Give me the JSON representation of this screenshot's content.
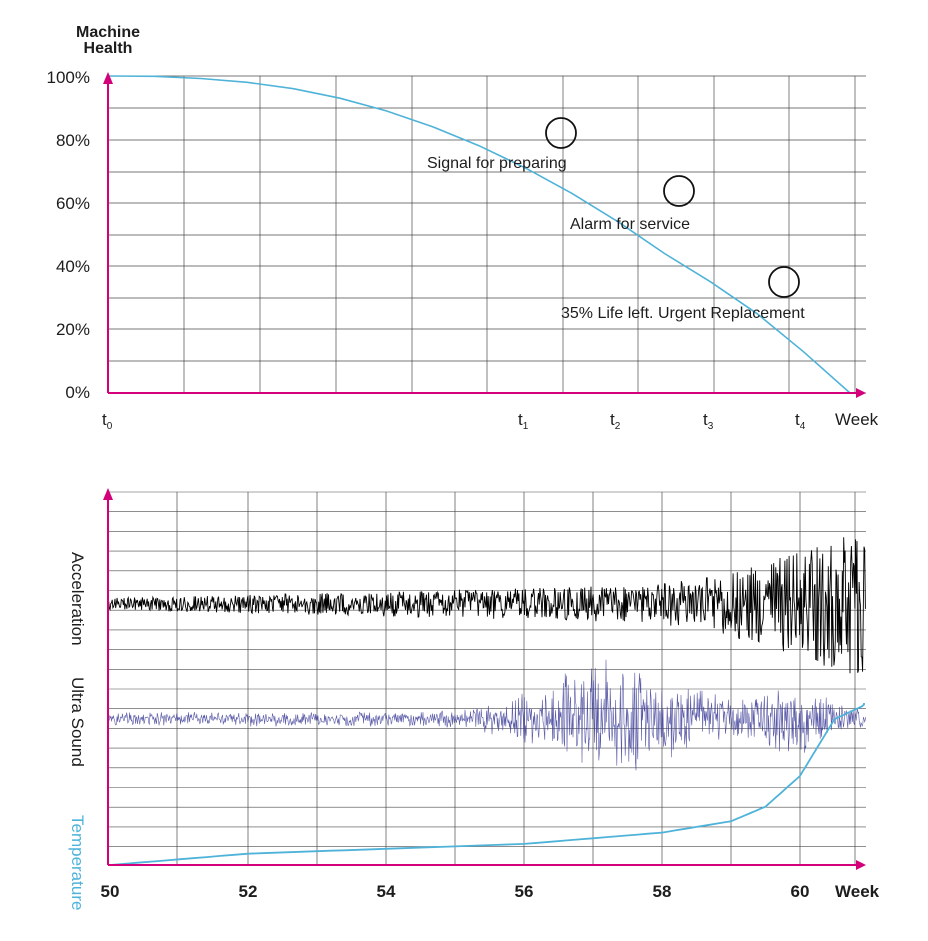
{
  "colors": {
    "axis": "#d4007a",
    "grid": "#4a4a4a",
    "health_curve": "#4fb3d9",
    "acceleration": "#000000",
    "ultrasound": "#3d3d99",
    "temperature": "#4fb3d9",
    "temperature_label": "#4fb3d9",
    "text": "#1d1d1d"
  },
  "chart_data": [
    {
      "type": "line",
      "ylabel_line1": "Machine",
      "ylabel_line2": "Health",
      "xlabel": "Week",
      "y_ticks": [
        "100%",
        "80%",
        "60%",
        "40%",
        "20%",
        "0%"
      ],
      "ylim": [
        0,
        100
      ],
      "x_markers": [
        {
          "base": "t",
          "sub": "0"
        },
        {
          "base": "t",
          "sub": "1"
        },
        {
          "base": "t",
          "sub": "2"
        },
        {
          "base": "t",
          "sub": "3"
        },
        {
          "base": "t",
          "sub": "4"
        }
      ],
      "grid": true,
      "series": [
        {
          "health_percent": [
            100,
            99.9,
            99.2,
            98,
            96,
            93,
            89,
            84,
            78,
            71,
            63,
            54,
            44,
            35,
            25,
            13,
            0
          ]
        }
      ],
      "annotations": [
        {
          "text": "Signal for preparing",
          "health_percent": 82
        },
        {
          "text": "Alarm for service",
          "health_percent": 64
        },
        {
          "text": "35% Life left. Urgent Replacement",
          "health_percent": 35
        }
      ]
    },
    {
      "type": "line",
      "xlabel": "Week",
      "x_ticks": [
        "50",
        "52",
        "54",
        "56",
        "58",
        "60"
      ],
      "xlim": [
        50,
        61
      ],
      "grid": true,
      "series": [
        {
          "name": "Acceleration",
          "trend": "vibration amplitude grows steadily, strongly after week 58"
        },
        {
          "name": "Ultra Sound",
          "trend": "noise bursts rise from week 56, peak near week 58"
        },
        {
          "name": "Temperature",
          "week": [
            50,
            52,
            54,
            56,
            58,
            59,
            59.5,
            60,
            60.5,
            61
          ],
          "relative_level": [
            0,
            0.07,
            0.1,
            0.13,
            0.2,
            0.27,
            0.36,
            0.55,
            0.9,
            1.0
          ]
        }
      ]
    }
  ]
}
